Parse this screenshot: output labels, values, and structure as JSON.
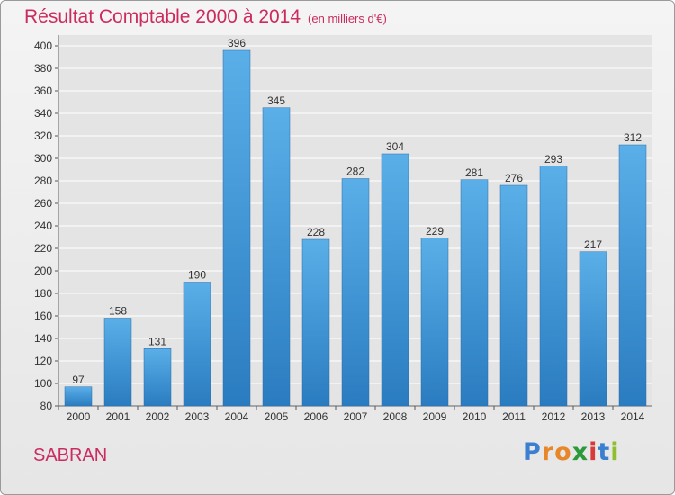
{
  "title": "Résultat Comptable 2000 à 2014",
  "subtitle": "(en milliers d'€)",
  "commune": "SABRAN",
  "logo": {
    "letters": [
      "P",
      "r",
      "o",
      "x",
      "i",
      "t",
      "i"
    ],
    "colors": [
      "#3a7fd0",
      "#e8862a",
      "#e8862a",
      "#2a9a3a",
      "#d63a3a",
      "#3a7fd0",
      "#8fbf2a"
    ]
  },
  "chart_data": {
    "type": "bar",
    "categories": [
      "2000",
      "2001",
      "2002",
      "2003",
      "2004",
      "2005",
      "2006",
      "2007",
      "2008",
      "2009",
      "2010",
      "2011",
      "2012",
      "2013",
      "2014"
    ],
    "values": [
      97,
      158,
      131,
      190,
      396,
      345,
      228,
      282,
      304,
      229,
      281,
      276,
      293,
      217,
      312
    ],
    "ylim": [
      80,
      400
    ],
    "yticks": [
      80,
      100,
      120,
      140,
      160,
      180,
      200,
      220,
      240,
      260,
      280,
      300,
      320,
      340,
      360,
      380,
      400
    ],
    "grid": true,
    "colors": {
      "bar_light": "#5aafe8",
      "bar_dark": "#2a7cc0",
      "grid": "#ffffff",
      "axis_text": "#333333"
    }
  }
}
